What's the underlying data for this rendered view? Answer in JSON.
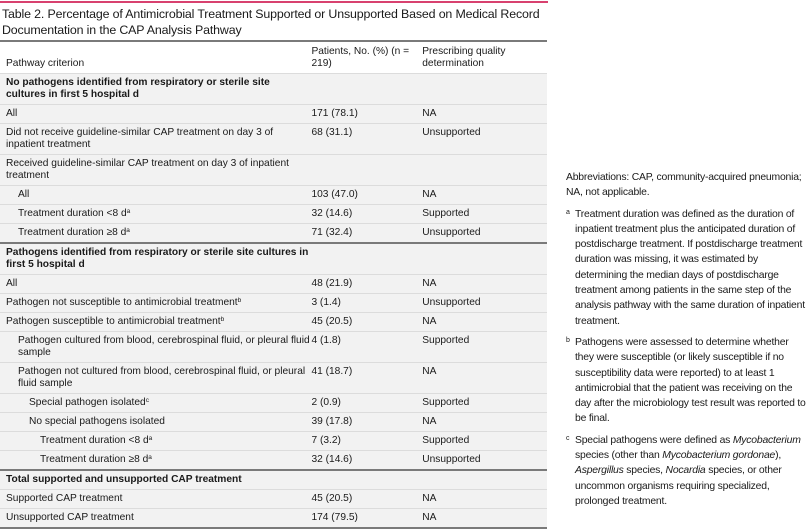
{
  "accent_color": "#d8416f",
  "title": "Table 2. Percentage of Antimicrobial Treatment Supported or Unsupported Based on Medical Record Documentation in the CAP Analysis Pathway",
  "header": {
    "col1": "Pathway criterion",
    "col2": "Patients, No. (%) (n = 219)",
    "col3": "Prescribing quality determination"
  },
  "rows": [
    {
      "type": "section",
      "label": "No pathogens identified from respiratory or sterile site cultures in first 5 hospital d",
      "sup": "",
      "patients": "",
      "determination": "",
      "level": 0
    },
    {
      "type": "row",
      "label": "All",
      "sup": "",
      "patients": "171 (78.1)",
      "determination": "NA",
      "level": 0
    },
    {
      "type": "row",
      "label": "Did not receive guideline-similar CAP treatment on day 3 of inpatient treatment",
      "sup": "",
      "patients": "68 (31.1)",
      "determination": "Unsupported",
      "level": 0
    },
    {
      "type": "row",
      "label": "Received guideline-similar CAP treatment on day 3 of inpatient treatment",
      "sup": "",
      "patients": "",
      "determination": "",
      "level": 0
    },
    {
      "type": "row",
      "label": "All",
      "sup": "",
      "patients": "103 (47.0)",
      "determination": "NA",
      "level": 1
    },
    {
      "type": "row",
      "label": "Treatment duration <8 d",
      "sup": "a",
      "patients": "32 (14.6)",
      "determination": "Supported",
      "level": 1
    },
    {
      "type": "row",
      "label": "Treatment duration ≥8 d",
      "sup": "a",
      "patients": "71 (32.4)",
      "determination": "Unsupported",
      "level": 1
    },
    {
      "type": "section",
      "label": "Pathogens identified from respiratory or sterile site cultures in first 5 hospital d",
      "sup": "",
      "patients": "",
      "determination": "",
      "level": 0
    },
    {
      "type": "row",
      "label": "All",
      "sup": "",
      "patients": "48 (21.9)",
      "determination": "NA",
      "level": 0
    },
    {
      "type": "row",
      "label": "Pathogen not susceptible to antimicrobial treatment",
      "sup": "b",
      "patients": "3 (1.4)",
      "determination": "Unsupported",
      "level": 0
    },
    {
      "type": "row",
      "label": "Pathogen susceptible to antimicrobial treatment",
      "sup": "b",
      "patients": "45 (20.5)",
      "determination": "NA",
      "level": 0
    },
    {
      "type": "row",
      "label": "Pathogen cultured from blood, cerebrospinal fluid, or pleural fluid sample",
      "sup": "",
      "patients": "4 (1.8)",
      "determination": "Supported",
      "level": 1
    },
    {
      "type": "row",
      "label": "Pathogen not cultured from blood, cerebrospinal fluid, or pleural fluid sample",
      "sup": "",
      "patients": "41 (18.7)",
      "determination": "NA",
      "level": 1
    },
    {
      "type": "row",
      "label": "Special pathogen isolated",
      "sup": "c",
      "patients": "2 (0.9)",
      "determination": "Supported",
      "level": 2
    },
    {
      "type": "row",
      "label": "No special pathogens isolated",
      "sup": "",
      "patients": "39 (17.8)",
      "determination": "NA",
      "level": 2
    },
    {
      "type": "row",
      "label": "Treatment duration <8 d",
      "sup": "a",
      "patients": "7 (3.2)",
      "determination": "Supported",
      "level": 3
    },
    {
      "type": "row",
      "label": "Treatment duration ≥8 d",
      "sup": "a",
      "patients": "32 (14.6)",
      "determination": "Unsupported",
      "level": 3
    },
    {
      "type": "section",
      "label": "Total supported and unsupported CAP treatment",
      "sup": "",
      "patients": "",
      "determination": "",
      "level": 0
    },
    {
      "type": "row",
      "label": "Supported CAP treatment",
      "sup": "",
      "patients": "45 (20.5)",
      "determination": "NA",
      "level": 0
    },
    {
      "type": "row",
      "label": "Unsupported CAP treatment",
      "sup": "",
      "patients": "174 (79.5)",
      "determination": "NA",
      "level": 0
    }
  ],
  "notes": {
    "abbreviations": "Abbreviations: CAP, community-acquired pneumonia; NA, not applicable.",
    "footnotes": [
      {
        "mark": "a",
        "segments": [
          {
            "text": "Treatment duration was defined as the duration of inpatient treatment plus the anticipated duration of postdischarge treatment. If postdischarge treatment duration was missing, it was estimated by determining the median days of postdischarge treatment among patients in the same step of the analysis pathway with the same duration of inpatient treatment.",
            "italic": false
          }
        ]
      },
      {
        "mark": "b",
        "segments": [
          {
            "text": "Pathogens were assessed to determine whether they were susceptible (or likely susceptible if no susceptibility data were reported) to at least 1 antimicrobial that the patient was receiving on the day after the microbiology test result was reported to be final.",
            "italic": false
          }
        ]
      },
      {
        "mark": "c",
        "segments": [
          {
            "text": "Special pathogens were defined as ",
            "italic": false
          },
          {
            "text": "Mycobacterium",
            "italic": true
          },
          {
            "text": " species (other than ",
            "italic": false
          },
          {
            "text": "Mycobacterium gordonae",
            "italic": true
          },
          {
            "text": "), ",
            "italic": false
          },
          {
            "text": "Aspergillus",
            "italic": true
          },
          {
            "text": " species, ",
            "italic": false
          },
          {
            "text": "Nocardia",
            "italic": true
          },
          {
            "text": " species, or other uncommon organisms requiring specialized, prolonged treatment.",
            "italic": false
          }
        ]
      }
    ]
  }
}
